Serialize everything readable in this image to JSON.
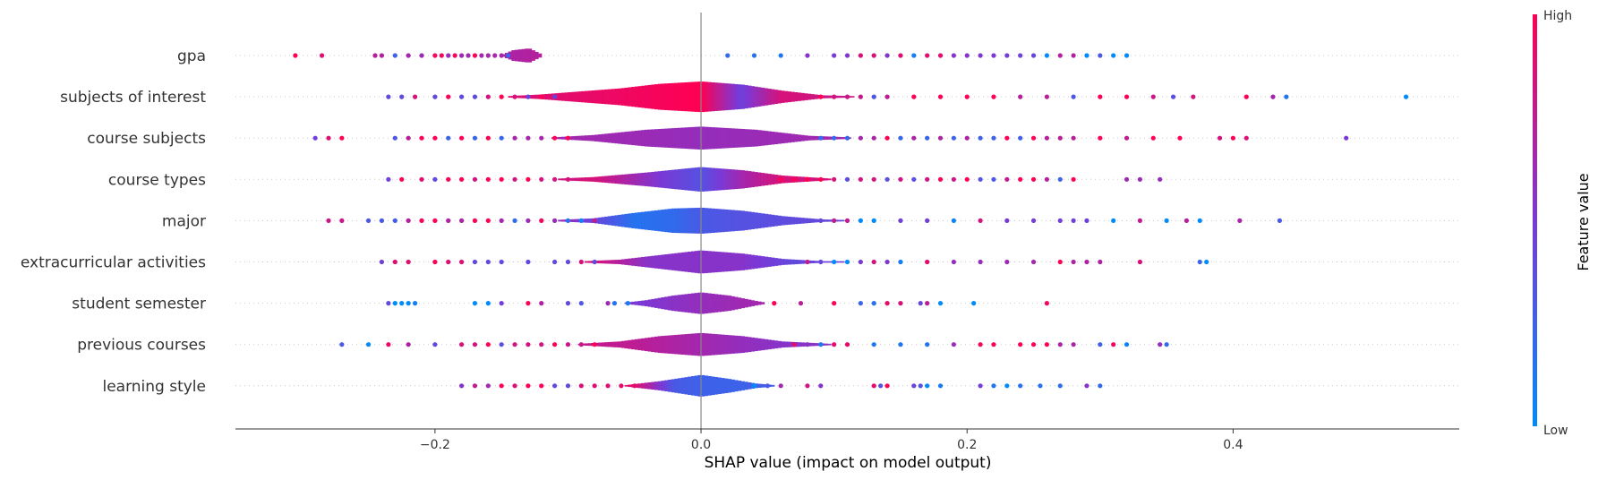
{
  "chart_data": {
    "type": "scatter",
    "subtype": "shap-summary-violin",
    "xlabel": "SHAP value (impact on model output)",
    "xlim": [
      -0.35,
      0.57
    ],
    "xticks": [
      -0.2,
      0.0,
      0.2,
      0.4
    ],
    "xtick_labels": [
      "−0.2",
      "0.0",
      "0.2",
      "0.4"
    ],
    "zero_line": 0.0,
    "grid": false,
    "colorbar": {
      "title": "Feature value",
      "high_label": "High",
      "low_label": "Low",
      "high_color": "#ff0052",
      "mid_color": "#7a39d6",
      "low_color": "#008bfb"
    },
    "features": [
      {
        "name": "gpa",
        "range": [
          -0.31,
          0.32
        ],
        "density": [
          [
            -0.15,
            0.0
          ],
          [
            -0.14,
            0.35
          ],
          [
            -0.13,
            0.45
          ],
          [
            -0.12,
            0.03
          ],
          [
            -0.1,
            0.02
          ],
          [
            0.0,
            0.02
          ],
          [
            0.1,
            0.02
          ],
          [
            0.2,
            0.01
          ],
          [
            0.32,
            0.0
          ]
        ],
        "value_colors": [
          [
            -0.31,
            0.95
          ],
          [
            -0.2,
            0.6
          ],
          [
            -0.1,
            0.75
          ],
          [
            0.0,
            0.7
          ],
          [
            0.1,
            0.5
          ],
          [
            0.2,
            0.55
          ],
          [
            0.3,
            0.3
          ]
        ],
        "points": [
          -0.305,
          -0.285,
          -0.245,
          -0.24,
          -0.23,
          -0.22,
          -0.21,
          -0.2,
          -0.195,
          -0.19,
          -0.185,
          -0.18,
          -0.175,
          -0.17,
          -0.165,
          -0.16,
          -0.155,
          -0.15,
          -0.145,
          -0.14,
          -0.135,
          0.02,
          0.04,
          0.06,
          0.08,
          0.1,
          0.11,
          0.12,
          0.13,
          0.14,
          0.15,
          0.16,
          0.17,
          0.18,
          0.19,
          0.2,
          0.21,
          0.22,
          0.23,
          0.24,
          0.25,
          0.26,
          0.27,
          0.28,
          0.29,
          0.3,
          0.31,
          0.32
        ]
      },
      {
        "name": "subjects of interest",
        "range": [
          -0.235,
          0.53
        ],
        "density": [
          [
            -0.15,
            0.02
          ],
          [
            -0.12,
            0.15
          ],
          [
            -0.09,
            0.35
          ],
          [
            -0.06,
            0.55
          ],
          [
            -0.03,
            0.85
          ],
          [
            0.0,
            1.0
          ],
          [
            0.03,
            0.8
          ],
          [
            0.06,
            0.4
          ],
          [
            0.09,
            0.1
          ],
          [
            0.12,
            0.03
          ],
          [
            0.53,
            0.0
          ]
        ],
        "value_colors": [
          [
            -0.23,
            0.85
          ],
          [
            -0.15,
            0.85
          ],
          [
            -0.1,
            0.9
          ],
          [
            -0.05,
            0.95
          ],
          [
            0.0,
            1.0
          ],
          [
            0.03,
            0.45
          ],
          [
            0.06,
            0.85
          ],
          [
            0.2,
            0.7
          ],
          [
            0.4,
            0.85
          ],
          [
            0.53,
            0.0
          ]
        ],
        "points": [
          -0.235,
          -0.225,
          -0.215,
          -0.2,
          -0.19,
          -0.18,
          -0.17,
          -0.16,
          -0.15,
          -0.14,
          -0.13,
          -0.12,
          -0.11,
          0.08,
          0.09,
          0.1,
          0.11,
          0.12,
          0.13,
          0.14,
          0.16,
          0.18,
          0.2,
          0.22,
          0.24,
          0.26,
          0.28,
          0.3,
          0.32,
          0.34,
          0.355,
          0.37,
          0.41,
          0.43,
          0.44,
          0.53
        ]
      },
      {
        "name": "course subjects",
        "range": [
          -0.29,
          0.485
        ],
        "density": [
          [
            -0.12,
            0.0
          ],
          [
            -0.08,
            0.2
          ],
          [
            -0.04,
            0.55
          ],
          [
            0.0,
            0.75
          ],
          [
            0.04,
            0.55
          ],
          [
            0.08,
            0.15
          ],
          [
            0.12,
            0.02
          ],
          [
            0.485,
            0.0
          ]
        ],
        "value_colors": [
          [
            -0.29,
            0.9
          ],
          [
            -0.2,
            0.7
          ],
          [
            -0.1,
            0.65
          ],
          [
            0.0,
            0.6
          ],
          [
            0.1,
            0.65
          ],
          [
            0.2,
            0.7
          ],
          [
            0.3,
            0.75
          ],
          [
            0.4,
            0.85
          ],
          [
            0.485,
            0.95
          ]
        ],
        "points": [
          -0.29,
          -0.28,
          -0.27,
          -0.23,
          -0.22,
          -0.21,
          -0.2,
          -0.19,
          -0.18,
          -0.17,
          -0.16,
          -0.15,
          -0.14,
          -0.13,
          -0.12,
          -0.11,
          -0.1,
          0.08,
          0.09,
          0.1,
          0.11,
          0.12,
          0.13,
          0.14,
          0.15,
          0.16,
          0.17,
          0.18,
          0.19,
          0.2,
          0.21,
          0.22,
          0.23,
          0.24,
          0.25,
          0.26,
          0.27,
          0.28,
          0.3,
          0.32,
          0.34,
          0.36,
          0.39,
          0.4,
          0.41,
          0.485
        ]
      },
      {
        "name": "course types",
        "range": [
          -0.235,
          0.345
        ],
        "density": [
          [
            -0.12,
            0.0
          ],
          [
            -0.08,
            0.15
          ],
          [
            -0.04,
            0.45
          ],
          [
            0.0,
            0.8
          ],
          [
            0.03,
            0.6
          ],
          [
            0.06,
            0.25
          ],
          [
            0.1,
            0.03
          ],
          [
            0.345,
            0.0
          ]
        ],
        "value_colors": [
          [
            -0.23,
            0.9
          ],
          [
            -0.15,
            0.8
          ],
          [
            -0.08,
            0.85
          ],
          [
            -0.03,
            0.5
          ],
          [
            0.0,
            0.35
          ],
          [
            0.03,
            0.65
          ],
          [
            0.06,
            0.85
          ],
          [
            0.2,
            0.8
          ],
          [
            0.345,
            0.6
          ]
        ],
        "points": [
          -0.235,
          -0.225,
          -0.21,
          -0.2,
          -0.19,
          -0.18,
          -0.17,
          -0.16,
          -0.15,
          -0.14,
          -0.13,
          -0.12,
          -0.11,
          -0.1,
          0.06,
          0.07,
          0.08,
          0.09,
          0.1,
          0.11,
          0.12,
          0.13,
          0.14,
          0.15,
          0.16,
          0.17,
          0.18,
          0.19,
          0.2,
          0.21,
          0.22,
          0.23,
          0.24,
          0.25,
          0.26,
          0.27,
          0.28,
          0.32,
          0.33,
          0.345
        ]
      },
      {
        "name": "major",
        "range": [
          -0.28,
          0.435
        ],
        "density": [
          [
            -0.12,
            0.0
          ],
          [
            -0.08,
            0.15
          ],
          [
            -0.05,
            0.5
          ],
          [
            -0.02,
            0.8
          ],
          [
            0.0,
            0.85
          ],
          [
            0.03,
            0.65
          ],
          [
            0.06,
            0.3
          ],
          [
            0.09,
            0.08
          ],
          [
            0.12,
            0.02
          ],
          [
            0.435,
            0.0
          ]
        ],
        "value_colors": [
          [
            -0.28,
            0.8
          ],
          [
            -0.2,
            0.7
          ],
          [
            -0.1,
            0.6
          ],
          [
            -0.05,
            0.15
          ],
          [
            -0.02,
            0.2
          ],
          [
            0.0,
            0.3
          ],
          [
            0.03,
            0.35
          ],
          [
            0.08,
            0.4
          ],
          [
            0.2,
            0.5
          ],
          [
            0.3,
            0.45
          ],
          [
            0.435,
            0.3
          ]
        ],
        "points": [
          -0.28,
          -0.27,
          -0.25,
          -0.24,
          -0.23,
          -0.22,
          -0.21,
          -0.2,
          -0.19,
          -0.18,
          -0.17,
          -0.16,
          -0.15,
          -0.14,
          -0.13,
          -0.12,
          -0.11,
          -0.1,
          -0.09,
          -0.08,
          0.07,
          0.08,
          0.09,
          0.1,
          0.11,
          0.12,
          0.13,
          0.15,
          0.17,
          0.19,
          0.21,
          0.23,
          0.25,
          0.27,
          0.28,
          0.29,
          0.31,
          0.33,
          0.35,
          0.365,
          0.375,
          0.405,
          0.435
        ]
      },
      {
        "name": "extracurricular activities",
        "range": [
          -0.24,
          0.38
        ],
        "density": [
          [
            -0.1,
            0.0
          ],
          [
            -0.06,
            0.15
          ],
          [
            -0.03,
            0.45
          ],
          [
            0.0,
            0.75
          ],
          [
            0.03,
            0.55
          ],
          [
            0.06,
            0.2
          ],
          [
            0.09,
            0.05
          ],
          [
            0.38,
            0.0
          ]
        ],
        "value_colors": [
          [
            -0.24,
            0.9
          ],
          [
            -0.15,
            0.85
          ],
          [
            -0.08,
            0.85
          ],
          [
            -0.04,
            0.55
          ],
          [
            0.0,
            0.55
          ],
          [
            0.03,
            0.55
          ],
          [
            0.07,
            0.4
          ],
          [
            0.2,
            0.6
          ],
          [
            0.3,
            0.7
          ],
          [
            0.38,
            0.2
          ]
        ],
        "points": [
          -0.24,
          -0.23,
          -0.22,
          -0.2,
          -0.19,
          -0.18,
          -0.17,
          -0.16,
          -0.15,
          -0.13,
          -0.11,
          -0.1,
          -0.09,
          -0.08,
          0.07,
          0.08,
          0.09,
          0.1,
          0.11,
          0.12,
          0.13,
          0.14,
          0.15,
          0.17,
          0.19,
          0.21,
          0.23,
          0.25,
          0.27,
          0.28,
          0.29,
          0.3,
          0.33,
          0.375,
          0.38
        ]
      },
      {
        "name": "student semester",
        "range": [
          -0.235,
          0.26
        ],
        "density": [
          [
            -0.06,
            0.0
          ],
          [
            -0.04,
            0.2
          ],
          [
            -0.02,
            0.5
          ],
          [
            0.0,
            0.7
          ],
          [
            0.02,
            0.5
          ],
          [
            0.04,
            0.15
          ],
          [
            0.05,
            0.0
          ],
          [
            0.26,
            0.0
          ]
        ],
        "value_colors": [
          [
            -0.235,
            0.05
          ],
          [
            -0.2,
            0.1
          ],
          [
            -0.1,
            0.85
          ],
          [
            -0.05,
            0.5
          ],
          [
            0.0,
            0.6
          ],
          [
            0.04,
            0.65
          ],
          [
            0.1,
            0.8
          ],
          [
            0.2,
            0.2
          ],
          [
            0.26,
            0.95
          ]
        ],
        "points": [
          -0.235,
          -0.23,
          -0.225,
          -0.22,
          -0.215,
          -0.17,
          -0.16,
          -0.15,
          -0.13,
          -0.12,
          -0.1,
          -0.09,
          -0.07,
          -0.065,
          -0.055,
          0.055,
          0.075,
          0.1,
          0.12,
          0.13,
          0.14,
          0.15,
          0.165,
          0.17,
          0.18,
          0.205,
          0.26
        ]
      },
      {
        "name": "previous courses",
        "range": [
          -0.27,
          0.35
        ],
        "density": [
          [
            -0.1,
            0.0
          ],
          [
            -0.06,
            0.2
          ],
          [
            -0.03,
            0.55
          ],
          [
            0.0,
            0.75
          ],
          [
            0.03,
            0.55
          ],
          [
            0.06,
            0.2
          ],
          [
            0.1,
            0.03
          ],
          [
            0.35,
            0.0
          ]
        ],
        "value_colors": [
          [
            -0.27,
            0.3
          ],
          [
            -0.2,
            0.85
          ],
          [
            -0.1,
            0.8
          ],
          [
            -0.05,
            0.75
          ],
          [
            0.0,
            0.65
          ],
          [
            0.03,
            0.6
          ],
          [
            0.06,
            0.55
          ],
          [
            0.2,
            0.6
          ],
          [
            0.3,
            0.7
          ],
          [
            0.35,
            0.2
          ]
        ],
        "points": [
          -0.27,
          -0.25,
          -0.235,
          -0.22,
          -0.2,
          -0.18,
          -0.17,
          -0.16,
          -0.15,
          -0.14,
          -0.13,
          -0.12,
          -0.11,
          -0.1,
          -0.09,
          -0.08,
          -0.07,
          0.07,
          0.08,
          0.09,
          0.1,
          0.11,
          0.13,
          0.15,
          0.17,
          0.19,
          0.21,
          0.22,
          0.24,
          0.25,
          0.26,
          0.27,
          0.28,
          0.3,
          0.31,
          0.32,
          0.345,
          0.35
        ]
      },
      {
        "name": "learning style",
        "range": [
          -0.18,
          0.3
        ],
        "density": [
          [
            -0.06,
            0.0
          ],
          [
            -0.03,
            0.3
          ],
          [
            0.0,
            0.7
          ],
          [
            0.02,
            0.45
          ],
          [
            0.04,
            0.15
          ],
          [
            0.06,
            0.0
          ],
          [
            0.3,
            0.0
          ]
        ],
        "value_colors": [
          [
            -0.18,
            0.2
          ],
          [
            -0.15,
            0.85
          ],
          [
            -0.1,
            0.85
          ],
          [
            -0.05,
            0.9
          ],
          [
            -0.02,
            0.3
          ],
          [
            0.0,
            0.25
          ],
          [
            0.03,
            0.25
          ],
          [
            0.06,
            0.3
          ],
          [
            0.13,
            0.9
          ],
          [
            0.18,
            0.1
          ],
          [
            0.3,
            0.2
          ]
        ],
        "points": [
          -0.18,
          -0.17,
          -0.16,
          -0.15,
          -0.14,
          -0.13,
          -0.12,
          -0.11,
          -0.1,
          -0.09,
          -0.08,
          -0.07,
          -0.06,
          -0.05,
          0.04,
          0.05,
          0.06,
          0.08,
          0.09,
          0.13,
          0.135,
          0.14,
          0.16,
          0.165,
          0.17,
          0.18,
          0.21,
          0.22,
          0.23,
          0.24,
          0.255,
          0.27,
          0.29,
          0.3
        ]
      }
    ]
  }
}
